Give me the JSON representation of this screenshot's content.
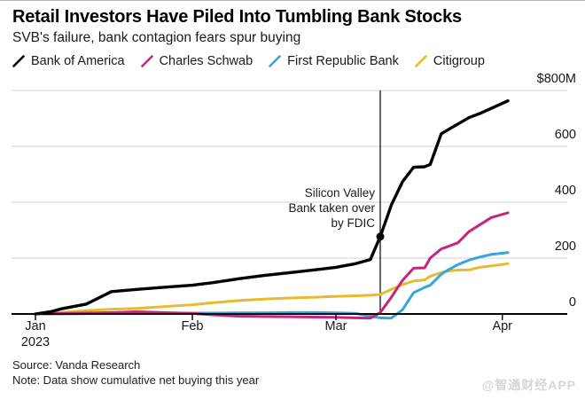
{
  "header": {
    "title": "Retail Investors Have Piled Into Tumbling Bank Stocks",
    "subtitle": "SVB's failure, bank contagion fears spur buying"
  },
  "legend": [
    {
      "label": "Bank of America",
      "color": "#000000"
    },
    {
      "label": "Charles Schwab",
      "color": "#c9237e"
    },
    {
      "label": "First Republic Bank",
      "color": "#36a5dc"
    },
    {
      "label": "Citigroup",
      "color": "#e9ba2d"
    }
  ],
  "chart_data": {
    "type": "line",
    "title": "Retail Investors Have Piled Into Tumbling Bank Stocks",
    "subtitle": "SVB's failure, bank contagion fears spur buying",
    "unit": "USD millions, cumulative net buying",
    "grid": "horizontal",
    "legend_position": "top",
    "ylim": [
      -20,
      800
    ],
    "yticks": [
      {
        "label": "$800M",
        "value": 800
      },
      {
        "label": "600",
        "value": 600
      },
      {
        "label": "400",
        "value": 400
      },
      {
        "label": "200",
        "value": 200
      },
      {
        "label": "0",
        "value": 0
      }
    ],
    "xticks": [
      {
        "label": "Jan",
        "sublabel": "2023",
        "day": 1
      },
      {
        "label": "Feb",
        "sublabel": "",
        "day": 32
      },
      {
        "label": "Mar",
        "sublabel": "",
        "day": 60
      },
      {
        "label": "Apr",
        "sublabel": "",
        "day": 91
      }
    ],
    "x_days": [
      1,
      4,
      6,
      11,
      16,
      21,
      26,
      32,
      36,
      41,
      46,
      51,
      56,
      60,
      64,
      67,
      69,
      71,
      73,
      75,
      77,
      78,
      80,
      81,
      83,
      85,
      87,
      89,
      92
    ],
    "series": [
      {
        "name": "Bank of America",
        "color": "#000000",
        "values": [
          0,
          8,
          18,
          35,
          80,
          88,
          95,
          103,
          112,
          126,
          138,
          148,
          158,
          167,
          180,
          195,
          277,
          390,
          473,
          525,
          527,
          535,
          645,
          657,
          680,
          703,
          718,
          736,
          763
        ]
      },
      {
        "name": "Charles Schwab",
        "color": "#c9237e",
        "values": [
          0,
          1,
          2,
          3,
          5,
          8,
          5,
          2,
          -3,
          -8,
          -9,
          -10,
          -11,
          -12,
          -14,
          -15,
          5,
          60,
          120,
          164,
          165,
          200,
          233,
          240,
          255,
          295,
          320,
          345,
          362
        ]
      },
      {
        "name": "First Republic Bank",
        "color": "#36a5dc",
        "values": [
          0,
          0,
          0,
          1,
          2,
          2,
          2,
          3,
          3,
          4,
          4,
          5,
          5,
          4,
          2,
          -8,
          -14,
          -15,
          15,
          76,
          95,
          103,
          142,
          155,
          177,
          193,
          204,
          213,
          220
        ]
      },
      {
        "name": "Citigroup",
        "color": "#e9ba2d",
        "values": [
          0,
          3,
          5,
          12,
          17,
          20,
          26,
          33,
          40,
          48,
          53,
          57,
          60,
          63,
          65,
          67,
          70,
          88,
          105,
          118,
          122,
          135,
          148,
          153,
          157,
          158,
          167,
          172,
          180
        ]
      }
    ],
    "annotation": {
      "lines": [
        "Silicon Valley",
        "Bank taken over",
        "by FDIC"
      ],
      "day": 69,
      "marker_series": "Bank of America",
      "marker_value": 277
    }
  },
  "footer": {
    "source": "Source: Vanda Research",
    "note": "Note: Data show cumulative net buying this year"
  },
  "watermark": "@智通财经APP"
}
